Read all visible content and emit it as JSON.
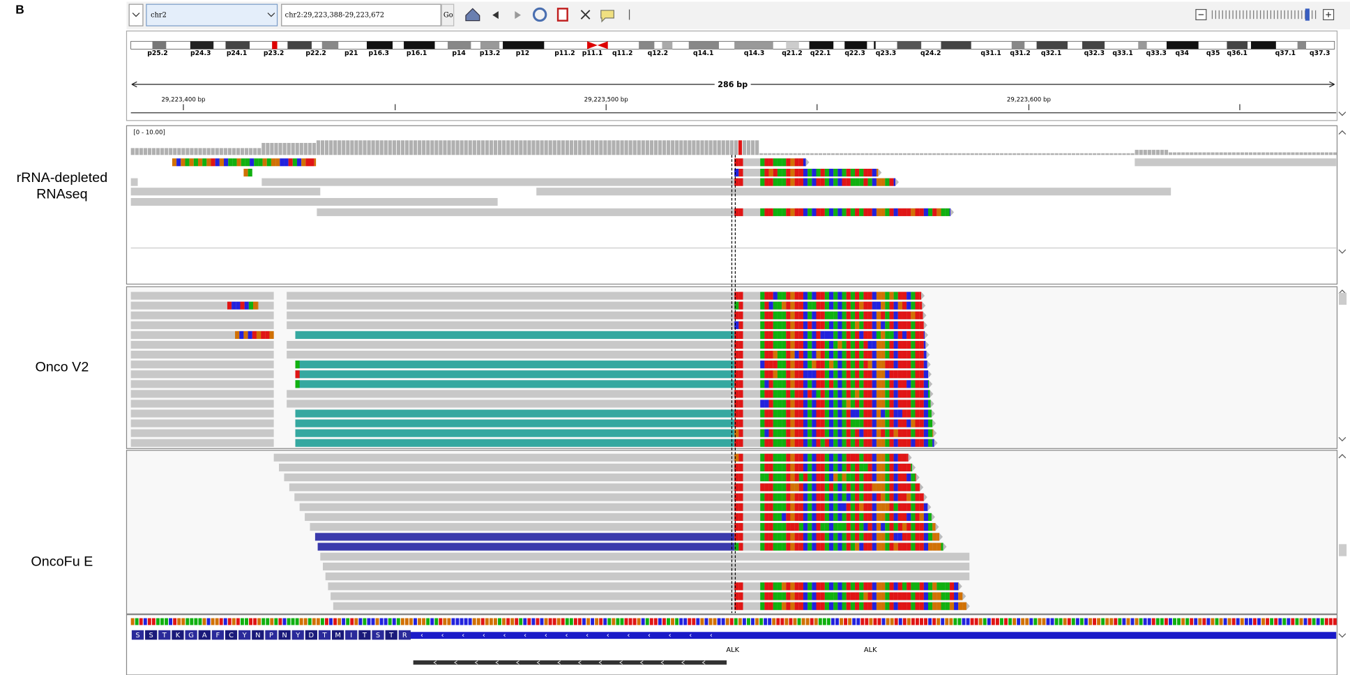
{
  "panel_label": "B",
  "toolbar": {
    "genome": "chr2",
    "locus": "chr2:29,223,388-29,223,672",
    "go": "Go"
  },
  "ideogram": {
    "bands": [
      "p25.2",
      "p24.3",
      "p24.1",
      "p23.2",
      "p22.2",
      "p21",
      "p16.3",
      "p16.1",
      "p14",
      "p13.2",
      "p12",
      "p11.2",
      "p11.1",
      "q11.2",
      "q12.2",
      "q14.1",
      "q14.3",
      "q21.2",
      "q22.1",
      "q22.3",
      "q23.3",
      "q24.2",
      "q31.1",
      "q31.2",
      "q32.1",
      "q32.3",
      "q33.1",
      "q33.3",
      "q34",
      "q35",
      "q36.1",
      "q37.1",
      "q37.3"
    ]
  },
  "ruler": {
    "span": "286 bp",
    "ticks": [
      "29,223,400 bp",
      "29,223,500 bp",
      "29,223,600 bp"
    ]
  },
  "coverage": {
    "range": "[0 - 10.00]"
  },
  "tracks": [
    {
      "name": [
        "rRNA-depleted",
        "RNAseq"
      ]
    },
    {
      "name": [
        "Onco V2"
      ]
    },
    {
      "name": [
        "OncoFu E"
      ]
    }
  ],
  "sequence": {
    "amino_acids": [
      "S",
      "S",
      "T",
      "K",
      "G",
      "A",
      "F",
      "C",
      "Y",
      "N",
      "P",
      "N",
      "Y",
      "D",
      "T",
      "M",
      "I",
      "T",
      "S",
      "T",
      "R"
    ]
  },
  "genes": [
    "ALK",
    "ALK"
  ]
}
